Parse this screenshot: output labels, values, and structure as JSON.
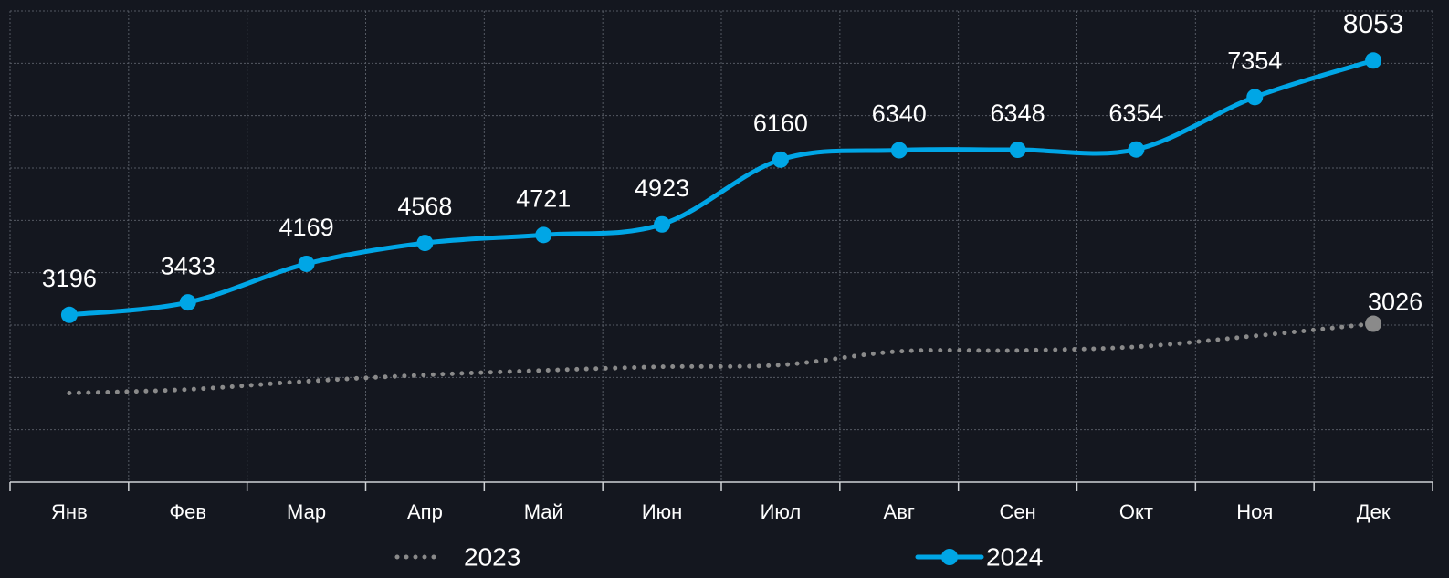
{
  "chart_data": {
    "type": "line",
    "categories": [
      "Янв",
      "Фев",
      "Мар",
      "Апр",
      "Май",
      "Июн",
      "Июл",
      "Авг",
      "Сен",
      "Окт",
      "Ноя",
      "Дек"
    ],
    "series": [
      {
        "name": "2023",
        "color": "#8a8a8a",
        "style": "dotted",
        "labeled_points": [
          11
        ],
        "values": [
          1700,
          1770,
          1926,
          2047,
          2134,
          2203,
          2238,
          2498,
          2515,
          2585,
          2793,
          3026
        ]
      },
      {
        "name": "2024",
        "color": "#00a6e6",
        "style": "solid",
        "labeled_points": [
          0,
          1,
          2,
          3,
          4,
          5,
          6,
          7,
          8,
          9,
          10,
          11
        ],
        "values": [
          3196,
          3433,
          4169,
          4568,
          4721,
          4923,
          6160,
          6340,
          6348,
          6354,
          7354,
          8053
        ]
      }
    ],
    "ylim": [
      0,
      9000
    ],
    "yticks": [
      0,
      1000,
      2000,
      3000,
      4000,
      5000,
      6000,
      7000,
      8000,
      9000
    ],
    "grid": true,
    "legend": "bottom"
  }
}
